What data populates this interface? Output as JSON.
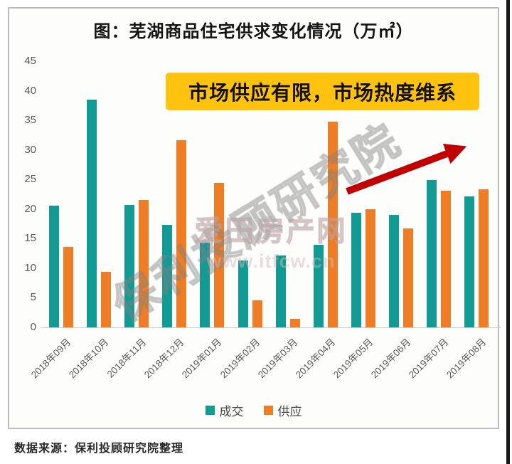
{
  "chart_data": {
    "type": "bar",
    "title": "图：芜湖商品住宅供求变化情况（万㎡）",
    "categories": [
      "2018年09月",
      "2018年10月",
      "2018年11月",
      "2018年12月",
      "2019年01月",
      "2019年02月",
      "2019年03月",
      "2019年04月",
      "2019年05月",
      "2019年06月",
      "2019年07月",
      "2019年08月"
    ],
    "series": [
      {
        "name": "成交",
        "color": "#129a94",
        "values": [
          20.6,
          38.5,
          20.7,
          17.3,
          14.3,
          11.3,
          12.2,
          14.0,
          19.4,
          19.0,
          24.9,
          22.1
        ]
      },
      {
        "name": "供应",
        "color": "#ef7d25",
        "values": [
          13.6,
          9.4,
          21.6,
          31.6,
          24.4,
          4.6,
          1.5,
          34.8,
          20.0,
          16.7,
          23.1,
          23.4
        ]
      }
    ],
    "xlabel": "",
    "ylabel": "",
    "ylim": [
      0,
      45
    ],
    "yticks": [
      0,
      5,
      10,
      15,
      20,
      25,
      30,
      35,
      40,
      45
    ],
    "grid": false,
    "legend_position": "bottom",
    "annotation": "市场供应有限，市场热度维系",
    "trend_arrow": {
      "color": "#c00000",
      "direction": "up-right"
    }
  },
  "colors": {
    "callout_bg": "#ffc20e",
    "callout_text": "#131200",
    "axis_text": "#595959"
  },
  "watermarks": {
    "diagonal": "保利投顾研究院",
    "site_name": "爱田房产网",
    "site_url": "www.itfcw.cn"
  },
  "footer": {
    "source": "数据来源：保利投顾研究院整理"
  }
}
